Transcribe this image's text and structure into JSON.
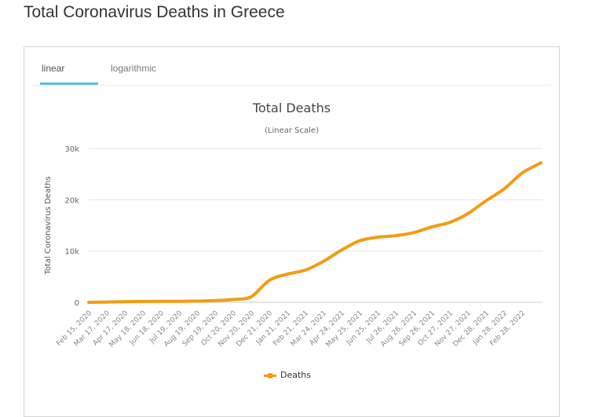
{
  "page": {
    "title": "Total Coronavirus Deaths in Greece"
  },
  "tabs": [
    {
      "label": "linear",
      "active": true
    },
    {
      "label": "logarithmic",
      "active": false
    }
  ],
  "colors": {
    "line": "#f39c12",
    "tab_active": "#5bc0de",
    "grid": "#e6e6e6"
  },
  "legend": {
    "label": "Deaths",
    "icon": "line-marker-icon"
  },
  "chart_data": {
    "type": "line",
    "title": "Total Deaths",
    "subtitle": "(Linear Scale)",
    "xlabel": "",
    "ylabel": "Total Coronavirus Deaths",
    "ylim": [
      0,
      30000
    ],
    "yticks": [
      0,
      10000,
      20000,
      30000
    ],
    "ytick_labels": [
      "0",
      "10k",
      "20k",
      "30k"
    ],
    "grid": true,
    "legend_position": "bottom",
    "categories": [
      "Feb 15, 2020",
      "Mar 17, 2020",
      "Apr 17, 2020",
      "May 18, 2020",
      "Jun 18, 2020",
      "Jul 19, 2020",
      "Aug 19, 2020",
      "Sep 19, 2020",
      "Oct 20, 2020",
      "Nov 20, 2020",
      "Dec 21, 2020",
      "Jan 21, 2021",
      "Feb 21, 2021",
      "Mar 24, 2021",
      "Apr 24, 2021",
      "May 25, 2021",
      "Jun 25, 2021",
      "Jul 26, 2021",
      "Aug 26, 2021",
      "Sep 26, 2021",
      "Oct 27, 2021",
      "Nov 27, 2021",
      "Dec 28, 2021",
      "Jan 28, 2022",
      "Feb 28, 2022"
    ],
    "series": [
      {
        "name": "Deaths",
        "values": [
          0,
          50,
          130,
          170,
          190,
          200,
          240,
          340,
          560,
          1100,
          4300,
          5500,
          6300,
          8000,
          10200,
          12000,
          12700,
          13000,
          13600,
          14700,
          15600,
          17300,
          19800,
          22100,
          25200
        ],
        "last_point": {
          "label": "end",
          "value": 27200
        }
      }
    ]
  }
}
